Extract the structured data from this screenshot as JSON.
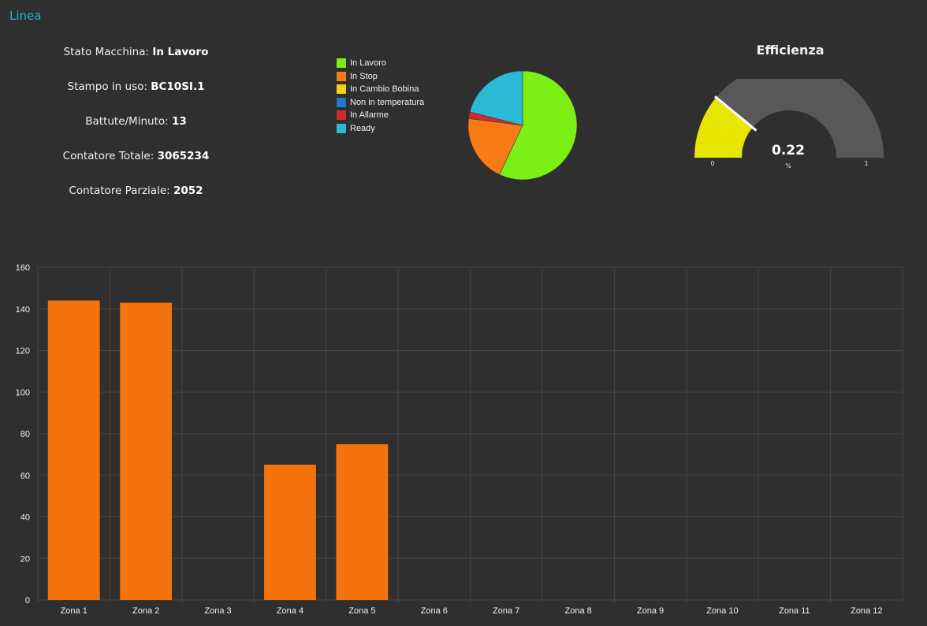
{
  "header": {
    "title": "Linea"
  },
  "info": {
    "rows": [
      {
        "label": "Stato Macchina:",
        "value": "In Lavoro"
      },
      {
        "label": "Stampo in uso:",
        "value": "BC10SI.1"
      },
      {
        "label": "Battute/Minuto:",
        "value": "13"
      },
      {
        "label": "Contatore Totale:",
        "value": "3065234"
      },
      {
        "label": "Contatore Parziale:",
        "value": "2052"
      }
    ]
  },
  "gauge": {
    "title": "Efficienza",
    "value": 0.22,
    "value_label": "0.22",
    "unit": "%",
    "min_label": "0",
    "max_label": "1",
    "min": 0,
    "max": 1,
    "fill_color": "#e6e600",
    "track_color": "#585858"
  },
  "chart_data": [
    {
      "type": "pie",
      "legend": [
        "In Lavoro",
        "In Stop",
        "In Cambio Bobina",
        "Non in temperatura",
        "In Allarme",
        "Ready"
      ],
      "colors": [
        "#7cf014",
        "#f77c14",
        "#f2d11b",
        "#1f78c8",
        "#d42a2a",
        "#2bbad6"
      ],
      "values": [
        57,
        20,
        0,
        0,
        2,
        21
      ],
      "legend_position": "left"
    },
    {
      "type": "bar",
      "categories": [
        "Zona 1",
        "Zona 2",
        "Zona 3",
        "Zona 4",
        "Zona 5",
        "Zona 6",
        "Zona 7",
        "Zona 8",
        "Zona 9",
        "Zona 10",
        "Zona 11",
        "Zona 12"
      ],
      "values": [
        144,
        143,
        0,
        65,
        75,
        0,
        0,
        0,
        0,
        0,
        0,
        0
      ],
      "ylim": [
        0,
        160
      ],
      "yticks": [
        0,
        20,
        40,
        60,
        80,
        100,
        120,
        140,
        160
      ],
      "bar_color": "#f4730c",
      "grid": true
    }
  ]
}
